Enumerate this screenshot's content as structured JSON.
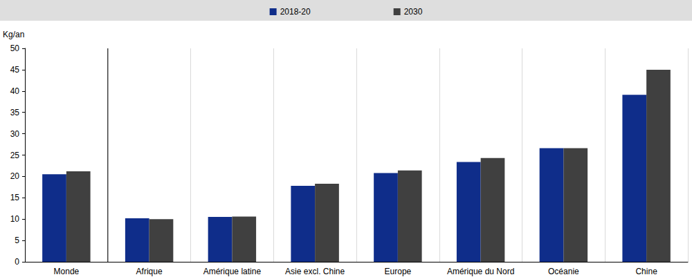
{
  "chart_data": {
    "type": "bar",
    "y_label": "Kg/an",
    "categories": [
      "Monde",
      "Afrique",
      "Amérique latine",
      "Asie excl. Chine",
      "Europe",
      "Amérique du Nord",
      "Océanie",
      "Chine"
    ],
    "series": [
      {
        "name": "2018-20",
        "color": "#0f2d8a",
        "values": [
          20.5,
          10.2,
          10.5,
          17.8,
          20.8,
          23.4,
          26.6,
          39.1
        ]
      },
      {
        "name": "2030",
        "color": "#404040",
        "values": [
          21.2,
          10.0,
          10.6,
          18.3,
          21.4,
          24.3,
          26.6,
          45.0
        ]
      }
    ],
    "ylim": [
      0,
      50
    ],
    "yticks": [
      0,
      5,
      10,
      15,
      20,
      25,
      30,
      35,
      40,
      45,
      50
    ],
    "grid": false,
    "legend": "top"
  }
}
